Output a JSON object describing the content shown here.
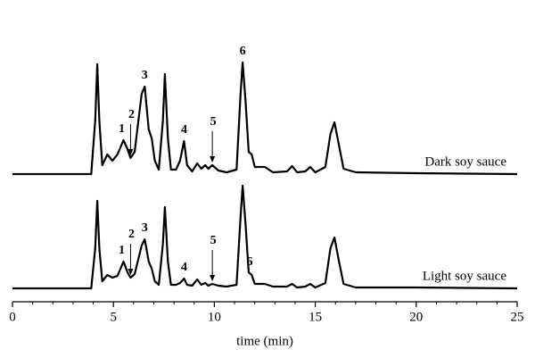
{
  "chart_data": [
    {
      "type": "line",
      "x": [
        0,
        3.9,
        4.1,
        4.2,
        4.3,
        4.45,
        4.7,
        4.95,
        5.2,
        5.5,
        5.7,
        5.85,
        6.05,
        6.4,
        6.55,
        6.75,
        6.9,
        7.05,
        7.25,
        7.45,
        7.55,
        7.7,
        7.85,
        8.1,
        8.3,
        8.5,
        8.65,
        8.9,
        9.15,
        9.35,
        9.55,
        9.7,
        9.9,
        10.2,
        10.6,
        11.1,
        11.3,
        11.4,
        11.55,
        11.7,
        11.85,
        12.0,
        12.5,
        12.9,
        13.6,
        13.85,
        14.1,
        14.5,
        14.75,
        15.0,
        15.5,
        15.75,
        15.95,
        16.15,
        16.4,
        17,
        20,
        25
      ],
      "series": [
        {
          "name": "Dark soy sauce",
          "color": "#000000",
          "values": [
            0,
            0,
            60,
            123,
            60,
            10,
            22,
            15,
            22,
            38,
            28,
            18,
            25,
            90,
            98,
            50,
            40,
            15,
            5,
            60,
            112,
            40,
            5,
            5,
            15,
            37,
            10,
            3,
            12,
            6,
            10,
            6,
            10,
            4,
            2,
            5,
            90,
            125,
            80,
            25,
            22,
            8,
            8,
            2,
            3,
            9,
            2,
            3,
            8,
            2,
            8,
            45,
            58,
            35,
            6,
            2,
            1,
            0
          ]
        }
      ],
      "xlim": [
        0,
        25
      ],
      "ylim": [
        0,
        130
      ],
      "legend": "lower right",
      "peaks": [
        {
          "label": "1",
          "x": 5.5
        },
        {
          "label": "2",
          "x": 5.85,
          "arrow": true
        },
        {
          "label": "3",
          "x": 6.55
        },
        {
          "label": "4",
          "x": 8.5
        },
        {
          "label": "5",
          "x": 9.9,
          "arrow": true
        },
        {
          "label": "6",
          "x": 11.4
        }
      ]
    },
    {
      "type": "line",
      "x": [
        0,
        3.9,
        4.1,
        4.2,
        4.3,
        4.45,
        4.7,
        4.95,
        5.2,
        5.5,
        5.7,
        5.85,
        6.05,
        6.4,
        6.55,
        6.75,
        6.9,
        7.05,
        7.25,
        7.45,
        7.55,
        7.7,
        7.85,
        8.1,
        8.3,
        8.5,
        8.65,
        8.9,
        9.15,
        9.35,
        9.55,
        9.7,
        9.9,
        10.2,
        10.6,
        11.1,
        11.3,
        11.4,
        11.55,
        11.7,
        11.85,
        12.0,
        12.5,
        12.9,
        13.6,
        13.85,
        14.1,
        14.5,
        14.75,
        15.0,
        15.5,
        15.75,
        15.95,
        16.15,
        16.4,
        17,
        20,
        25
      ],
      "series": [
        {
          "name": "Light soy sauce",
          "color": "#000000",
          "values": [
            0,
            0,
            45,
            98,
            45,
            8,
            15,
            12,
            14,
            30,
            18,
            12,
            16,
            48,
            55,
            30,
            22,
            8,
            4,
            50,
            91,
            30,
            4,
            4,
            6,
            11,
            4,
            3,
            10,
            4,
            6,
            3,
            5,
            3,
            2,
            4,
            80,
            115,
            70,
            18,
            15,
            5,
            5,
            2,
            2,
            5,
            1,
            2,
            5,
            1,
            6,
            45,
            57,
            33,
            5,
            1,
            1,
            0
          ]
        }
      ],
      "xlim": [
        0,
        25
      ],
      "ylim": [
        0,
        130
      ],
      "legend": "lower right",
      "xticks": [
        0,
        5,
        10,
        15,
        20,
        25
      ],
      "xminorticks": [
        1,
        2,
        3,
        4,
        6,
        7,
        8,
        9,
        11,
        12,
        13,
        14,
        16,
        17,
        18,
        19,
        21,
        22,
        23,
        24
      ],
      "xlabel": "time (min)",
      "peaks": [
        {
          "label": "1",
          "x": 5.5
        },
        {
          "label": "2",
          "x": 5.85,
          "arrow": true
        },
        {
          "label": "3",
          "x": 6.55
        },
        {
          "label": "4",
          "x": 8.5
        },
        {
          "label": "5",
          "x": 9.9,
          "arrow": true
        },
        {
          "label": "6",
          "x": 11.75
        }
      ]
    }
  ]
}
